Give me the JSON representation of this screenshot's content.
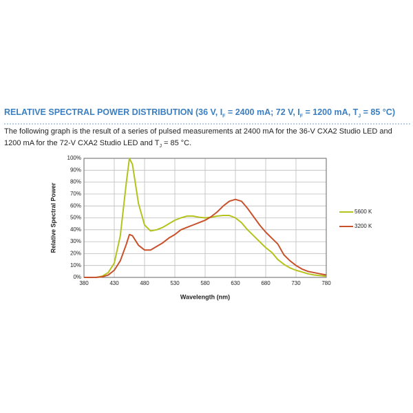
{
  "section": {
    "title_parts": [
      "RELATIVE SPECTRAL POWER DISTRIBUTION (36 V, I",
      "F",
      " = 2400 mA; 72 V, I",
      "F",
      " = 1200 mA, T",
      "J",
      " = 85 °C)"
    ],
    "text_parts": [
      "The following graph is the result of a series of pulsed measurements at 2400 mA for the 36-V CXA2 Studio LED and 1200 mA for the 72-V CXA2 Studio LED and T",
      "J",
      " = 85 °C."
    ]
  },
  "chart_data": {
    "type": "line",
    "x_label": "Wavelength (nm)",
    "y_label": "Relative Spectral Power",
    "x": [
      380,
      390,
      400,
      410,
      420,
      430,
      440,
      450,
      455,
      460,
      470,
      480,
      490,
      500,
      510,
      520,
      530,
      540,
      550,
      560,
      570,
      580,
      590,
      600,
      610,
      620,
      630,
      640,
      650,
      660,
      670,
      680,
      690,
      700,
      710,
      720,
      730,
      740,
      750,
      760,
      770,
      780
    ],
    "series": [
      {
        "name": "5600 K",
        "color": "#b4c21c",
        "values": [
          0,
          0,
          0,
          1,
          4,
          12,
          35,
          80,
          100,
          95,
          62,
          44,
          39,
          40,
          42,
          45,
          48,
          50,
          51.5,
          51.5,
          50.5,
          50,
          50.5,
          51.5,
          52,
          52,
          50,
          46,
          40,
          35,
          30,
          25,
          21,
          15,
          11,
          8,
          6,
          4.5,
          3,
          2,
          1.5,
          1
        ]
      },
      {
        "name": "3200 K",
        "color": "#c8502a",
        "values": [
          0,
          0,
          0,
          0.5,
          2,
          6,
          14,
          28,
          36,
          35,
          27,
          23,
          23,
          26,
          29,
          33,
          36,
          40,
          42,
          44,
          46,
          48,
          51,
          55,
          60,
          64,
          65.5,
          64,
          58,
          51,
          44,
          38,
          33,
          28,
          19,
          14,
          10,
          7,
          5,
          4,
          3,
          2
        ]
      }
    ],
    "xlim": [
      380,
      780
    ],
    "xticks": [
      380,
      430,
      480,
      530,
      580,
      630,
      680,
      730,
      780
    ],
    "ylim": [
      0,
      100
    ],
    "yticks": [
      {
        "value": 0,
        "label": "0%"
      },
      {
        "value": 10,
        "label": "10%"
      },
      {
        "value": 20,
        "label": "20%"
      },
      {
        "value": 30,
        "label": "30%"
      },
      {
        "value": 40,
        "label": "40%"
      },
      {
        "value": 50,
        "label": "50%"
      },
      {
        "value": 60,
        "label": "60%"
      },
      {
        "value": 70,
        "label": "70%"
      },
      {
        "value": 80,
        "label": "80%"
      },
      {
        "value": 90,
        "label": "90%"
      },
      {
        "value": 100,
        "label": "100%"
      }
    ],
    "grid": true
  }
}
